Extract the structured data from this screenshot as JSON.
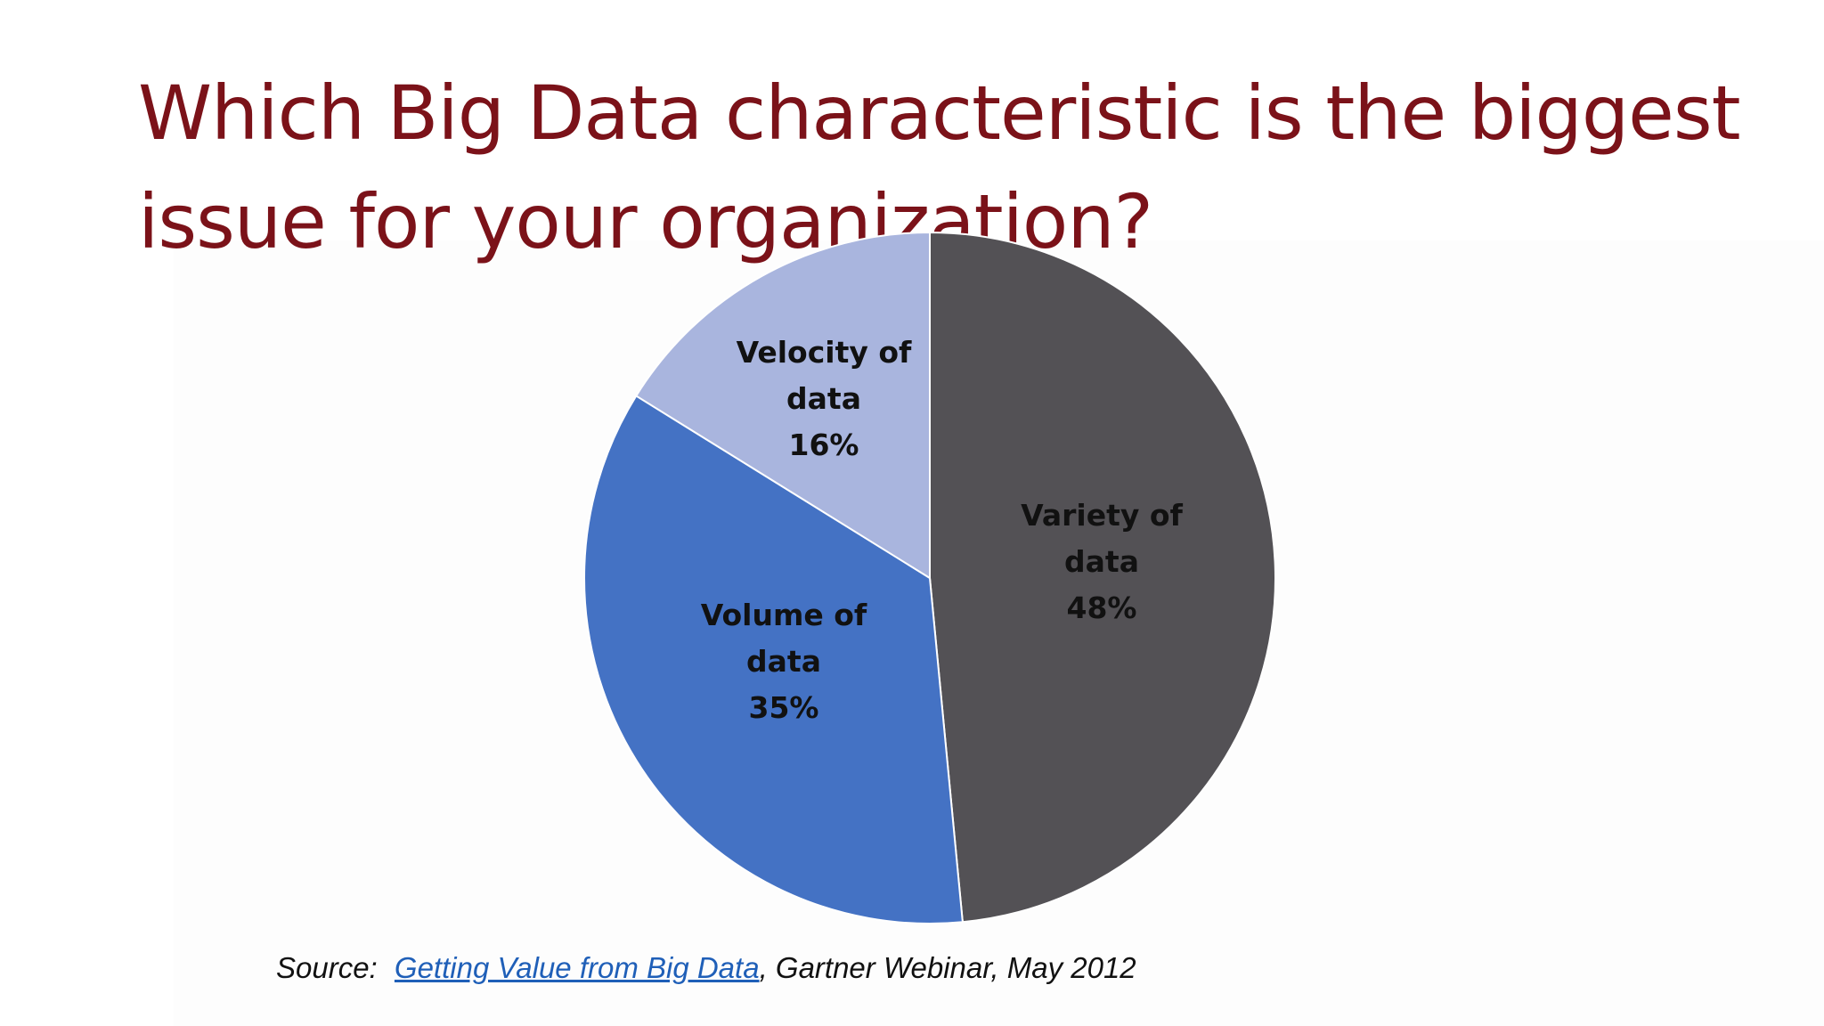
{
  "slide": {
    "title_lines": [
      "Which Big Data characteristic is the biggest",
      "issue for your organization?"
    ],
    "source": {
      "prefix": "Source:",
      "link_text": "Getting Value from Big Data",
      "suffix": ", Gartner Webinar, May 2012"
    }
  },
  "colors": {
    "title": "#7b1219",
    "link": "#1f5fb8"
  },
  "chart_data": {
    "type": "pie",
    "title": "Which Big Data characteristic is the biggest issue for your organization?",
    "start": "12 o'clock",
    "direction": "clockwise",
    "slices": [
      {
        "label_lines": [
          "Variety of",
          "data",
          "48%"
        ],
        "category": "Variety of data",
        "value": 48,
        "color": "#535155"
      },
      {
        "label_lines": [
          "Volume of",
          "data",
          "35%"
        ],
        "category": "Volume of data",
        "value": 35,
        "color": "#4472c4"
      },
      {
        "label_lines": [
          "Velocity of",
          "data",
          "16%"
        ],
        "category": "Velocity of data",
        "value": 16,
        "color": "#a9b5de"
      }
    ]
  }
}
